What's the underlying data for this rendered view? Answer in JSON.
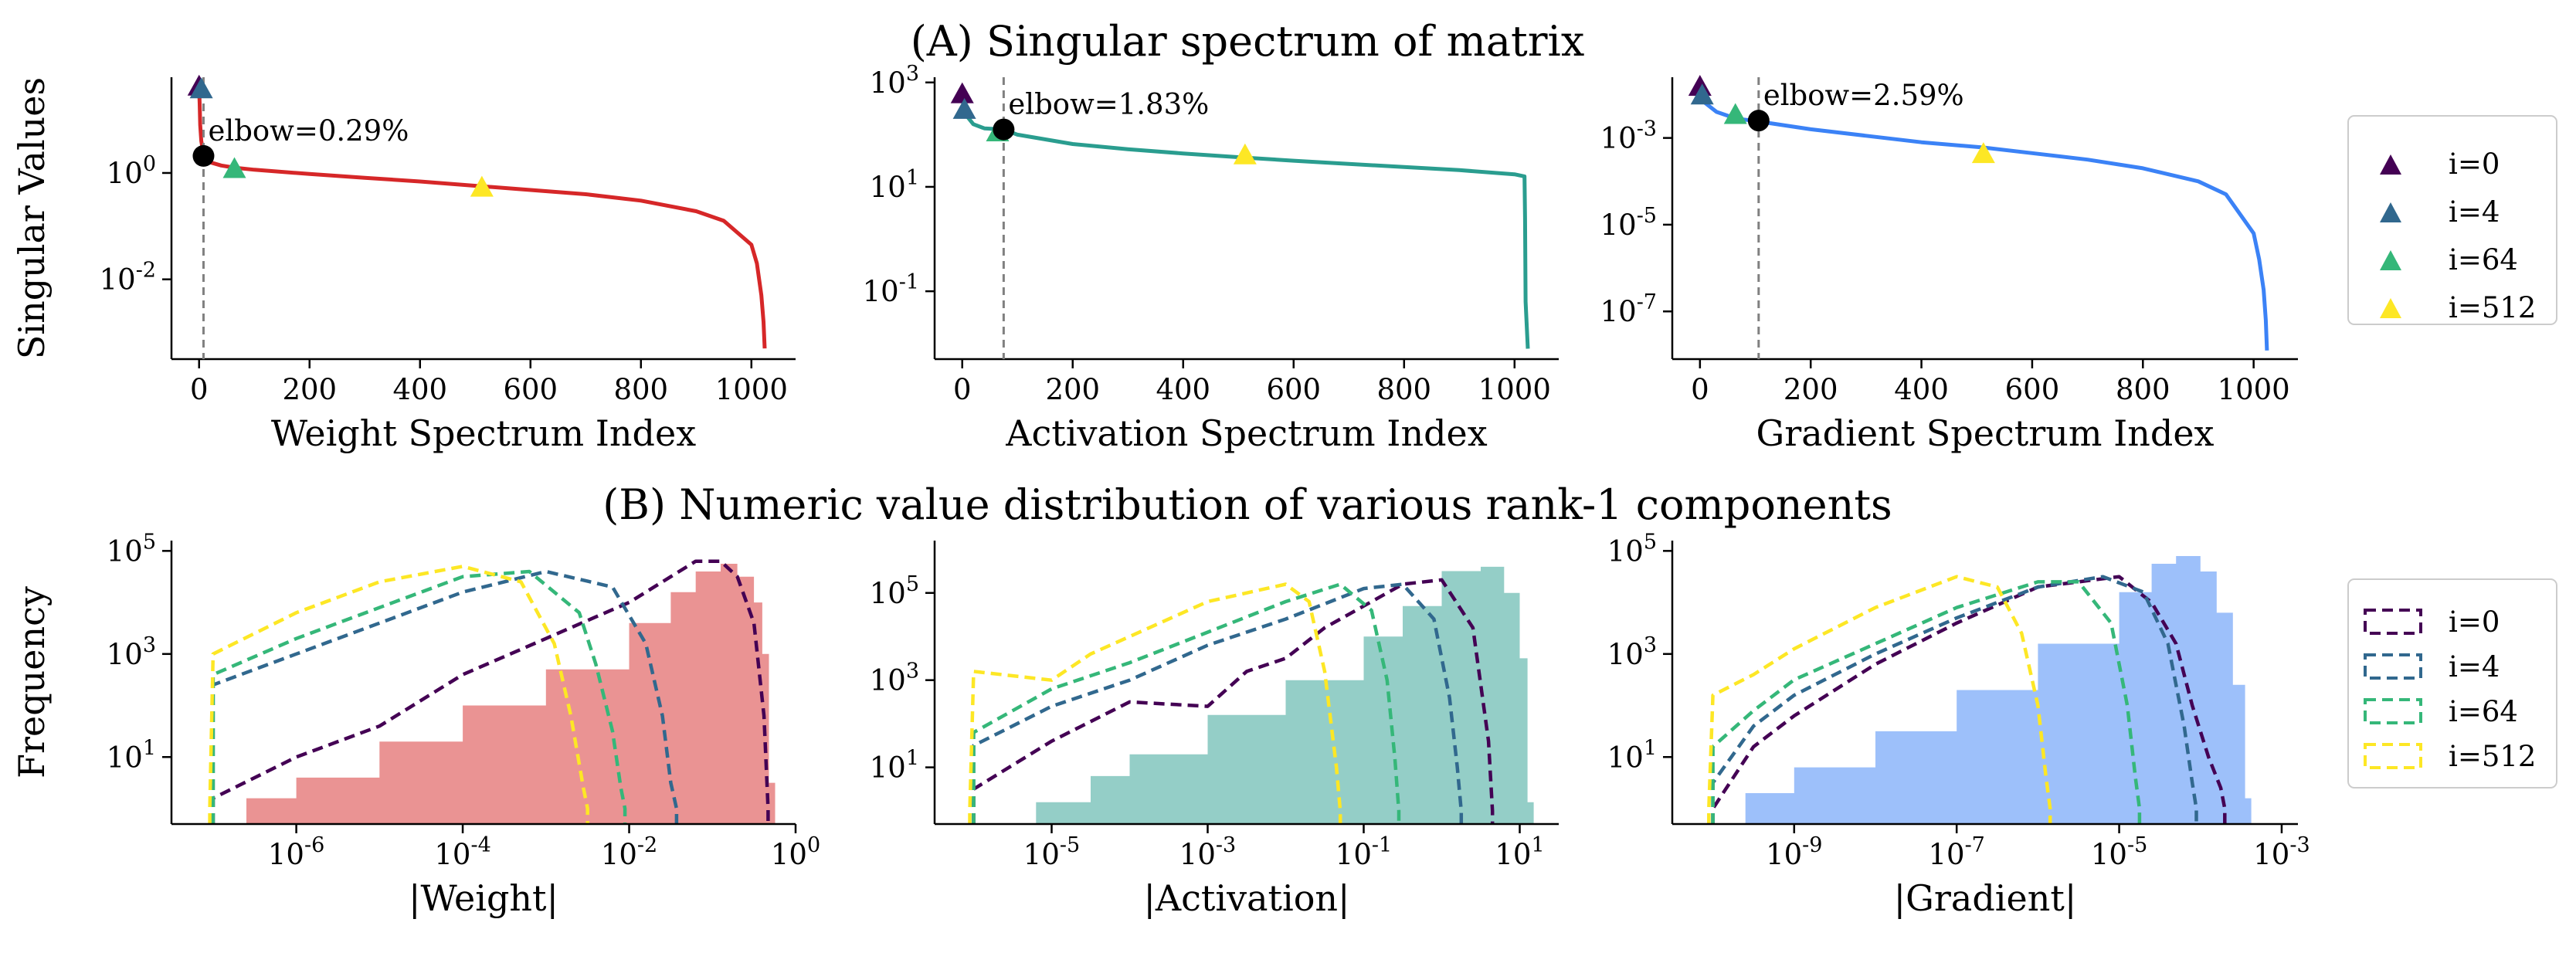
{
  "figure": {
    "title_a": "(A) Singular spectrum of matrix",
    "title_b": "(B) Numeric value distribution of various rank-1 components",
    "colors": {
      "weight": "#d62728",
      "activation": "#2a9d8f",
      "gradient": "#3b82f6",
      "i0": "#440154",
      "i4": "#31688e",
      "i64": "#35b779",
      "i512": "#fde725",
      "elbow_line": "#808080"
    }
  },
  "legend_spectrum": {
    "entries": [
      "i=0",
      "i=4",
      "i=64",
      "i=512"
    ]
  },
  "legend_hist": {
    "entries": [
      "i=0",
      "i=4",
      "i=64",
      "i=512"
    ]
  },
  "chart_data": [
    {
      "type": "line",
      "id": "weight_spectrum",
      "color_key": "weight",
      "xlabel": "Weight Spectrum Index",
      "ylabel": "Singular Values",
      "xlim": [
        -50,
        1080
      ],
      "ylim_log10": [
        -3.5,
        1.8
      ],
      "xticks": [
        0,
        200,
        400,
        600,
        800,
        1000
      ],
      "xtick_labels": [
        "0",
        "200",
        "400",
        "600",
        "800",
        "1000"
      ],
      "yticks_log10": [
        0,
        -2
      ],
      "ytick_labels": [
        "10^0",
        "10^-2"
      ],
      "x": [
        0,
        1,
        2,
        4,
        8,
        12,
        20,
        40,
        64,
        100,
        200,
        300,
        400,
        512,
        600,
        700,
        800,
        900,
        950,
        1000,
        1010,
        1018,
        1022,
        1024
      ],
      "y_log10": [
        1.6,
        1.3,
        0.9,
        0.6,
        0.35,
        0.26,
        0.2,
        0.14,
        0.1,
        0.06,
        -0.02,
        -0.09,
        -0.16,
        -0.25,
        -0.32,
        -0.4,
        -0.52,
        -0.72,
        -0.9,
        -1.35,
        -1.7,
        -2.3,
        -2.8,
        -3.3
      ],
      "markers": [
        {
          "label": "i=0",
          "x": 0,
          "y_log10": 1.6,
          "color_key": "i0"
        },
        {
          "label": "i=4",
          "x": 4,
          "y_log10": 1.55,
          "color_key": "i4"
        },
        {
          "label": "i=64",
          "x": 64,
          "y_log10": 0.05,
          "color_key": "i64"
        },
        {
          "label": "i=512",
          "x": 512,
          "y_log10": -0.3,
          "color_key": "i512"
        }
      ],
      "elbow": {
        "x": 8,
        "y_log10": 0.32,
        "label": "elbow=0.29%"
      }
    },
    {
      "type": "line",
      "id": "activation_spectrum",
      "color_key": "activation",
      "xlabel": "Activation Spectrum Index",
      "ylabel": "",
      "xlim": [
        -50,
        1080
      ],
      "ylim_log10": [
        -2.3,
        3.1
      ],
      "xticks": [
        0,
        200,
        400,
        600,
        800,
        1000
      ],
      "xtick_labels": [
        "0",
        "200",
        "400",
        "600",
        "800",
        "1000"
      ],
      "yticks_log10": [
        3,
        1,
        -1
      ],
      "ytick_labels": [
        "10^3",
        "10^1",
        "10^-1"
      ],
      "x": [
        0,
        5,
        20,
        40,
        75,
        100,
        200,
        300,
        400,
        512,
        600,
        700,
        800,
        900,
        1000,
        1018,
        1019,
        1020,
        1024
      ],
      "y_log10": [
        2.7,
        2.4,
        2.2,
        2.12,
        2.1,
        2.0,
        1.82,
        1.72,
        1.64,
        1.56,
        1.5,
        1.44,
        1.38,
        1.32,
        1.24,
        1.2,
        0.4,
        -1.2,
        -2.1
      ],
      "markers": [
        {
          "label": "i=0",
          "x": 0,
          "y_log10": 2.75,
          "color_key": "i0"
        },
        {
          "label": "i=4",
          "x": 4,
          "y_log10": 2.45,
          "color_key": "i4"
        },
        {
          "label": "i=64",
          "x": 64,
          "y_log10": 2.02,
          "color_key": "i64"
        },
        {
          "label": "i=512",
          "x": 512,
          "y_log10": 1.58,
          "color_key": "i512"
        }
      ],
      "elbow": {
        "x": 75,
        "y_log10": 2.1,
        "label": "elbow=1.83%"
      }
    },
    {
      "type": "line",
      "id": "gradient_spectrum",
      "color_key": "gradient",
      "xlabel": "Gradient Spectrum Index",
      "ylabel": "",
      "xlim": [
        -50,
        1080
      ],
      "ylim_log10": [
        -8.1,
        -1.6
      ],
      "xticks": [
        0,
        200,
        400,
        600,
        800,
        1000
      ],
      "xtick_labels": [
        "0",
        "200",
        "400",
        "600",
        "800",
        "1000"
      ],
      "yticks_log10": [
        -3,
        -5,
        -7
      ],
      "ytick_labels": [
        "10^-3",
        "10^-5",
        "10^-7"
      ],
      "x": [
        0,
        2,
        10,
        30,
        64,
        106,
        200,
        300,
        400,
        512,
        600,
        700,
        800,
        900,
        950,
        1000,
        1010,
        1018,
        1022,
        1024
      ],
      "y_log10": [
        -1.85,
        -2.0,
        -2.2,
        -2.4,
        -2.55,
        -2.62,
        -2.8,
        -2.95,
        -3.1,
        -3.22,
        -3.35,
        -3.5,
        -3.7,
        -4.0,
        -4.3,
        -5.2,
        -5.8,
        -6.5,
        -7.2,
        -7.9
      ],
      "markers": [
        {
          "label": "i=0",
          "x": 0,
          "y_log10": -1.85,
          "color_key": "i0"
        },
        {
          "label": "i=4",
          "x": 4,
          "y_log10": -2.05,
          "color_key": "i4"
        },
        {
          "label": "i=64",
          "x": 64,
          "y_log10": -2.5,
          "color_key": "i64"
        },
        {
          "label": "i=512",
          "x": 512,
          "y_log10": -3.4,
          "color_key": "i512"
        }
      ],
      "elbow": {
        "x": 106,
        "y_log10": -2.6,
        "label": "elbow=2.59%"
      }
    },
    {
      "type": "histogram",
      "id": "weight_hist",
      "color_key": "weight",
      "xlabel": "|Weight|",
      "ylabel": "Frequency",
      "xlim_log10": [
        -7.5,
        0
      ],
      "ylim_log10": [
        -0.3,
        5.2
      ],
      "xticks_log10": [
        -6,
        -4,
        -2,
        0
      ],
      "xtick_labels": [
        "10^-6",
        "10^-4",
        "10^-2",
        "10^0"
      ],
      "yticks_log10": [
        5,
        3,
        1
      ],
      "ytick_labels": [
        "10^5",
        "10^3",
        "10^1"
      ],
      "filled": {
        "x_log10": [
          -6.6,
          -6,
          -5,
          -4,
          -3,
          -2,
          -1.5,
          -1.2,
          -0.9,
          -0.7,
          -0.5,
          -0.4,
          -0.32
        ],
        "y_log10": [
          0.2,
          0.6,
          1.3,
          2.0,
          2.7,
          3.6,
          4.2,
          4.6,
          4.75,
          4.5,
          4.0,
          3.0,
          0.5
        ]
      },
      "outlines": [
        {
          "label": "i=0",
          "color_key": "i0",
          "x_log10": [
            -7,
            -6,
            -5,
            -4,
            -3,
            -2,
            -1.5,
            -1.2,
            -0.9,
            -0.7,
            -0.5,
            -0.38,
            -0.33
          ],
          "y_log10": [
            0.2,
            1.0,
            1.6,
            2.6,
            3.3,
            4.0,
            4.5,
            4.8,
            4.8,
            4.5,
            3.6,
            1.8,
            0.0
          ]
        },
        {
          "label": "i=4",
          "color_key": "i4",
          "x_log10": [
            -7,
            -6,
            -5,
            -4,
            -3,
            -2.2,
            -1.8,
            -1.6,
            -1.5,
            -1.43
          ],
          "y_log10": [
            2.4,
            3.0,
            3.6,
            4.2,
            4.6,
            4.3,
            3.2,
            1.8,
            0.5,
            0.0
          ]
        },
        {
          "label": "i=64",
          "color_key": "i64",
          "x_log10": [
            -7,
            -6,
            -5,
            -4,
            -3.2,
            -2.6,
            -2.4,
            -2.2,
            -2.1,
            -2.05
          ],
          "y_log10": [
            2.6,
            3.3,
            3.9,
            4.5,
            4.6,
            3.8,
            2.8,
            1.5,
            0.4,
            0.0
          ]
        },
        {
          "label": "i=512",
          "color_key": "i512",
          "x_log10": [
            -7.04,
            -7,
            -6,
            -5,
            -4,
            -3.3,
            -2.9,
            -2.7,
            -2.55,
            -2.5
          ],
          "y_log10": [
            0.0,
            3.0,
            3.8,
            4.4,
            4.7,
            4.4,
            3.2,
            1.8,
            0.4,
            0.0
          ]
        }
      ]
    },
    {
      "type": "histogram",
      "id": "activation_hist",
      "color_key": "activation",
      "xlabel": "|Activation|",
      "ylabel": "",
      "xlim_log10": [
        -6.5,
        1.5
      ],
      "ylim_log10": [
        -0.3,
        6.2
      ],
      "xticks_log10": [
        -5,
        -3,
        -1,
        1
      ],
      "xtick_labels": [
        "10^-5",
        "10^-3",
        "10^-1",
        "10^1"
      ],
      "yticks_log10": [
        5,
        3,
        1
      ],
      "ytick_labels": [
        "10^5",
        "10^3",
        "10^1"
      ],
      "filled": {
        "x_log10": [
          -5.2,
          -4.5,
          -4,
          -3,
          -2,
          -1,
          -0.5,
          0,
          0.5,
          0.8,
          1.0,
          1.1
        ],
        "y_log10": [
          0.2,
          0.8,
          1.3,
          2.2,
          3.0,
          4.0,
          4.7,
          5.5,
          5.6,
          5.0,
          3.5,
          0.2
        ]
      },
      "outlines": [
        {
          "label": "i=0",
          "color_key": "i0",
          "x_log10": [
            -6,
            -5,
            -4,
            -3,
            -2.5,
            -2,
            -1.5,
            -1,
            -0.5,
            0,
            0.4,
            0.6,
            0.65
          ],
          "y_log10": [
            0.5,
            1.6,
            2.5,
            2.4,
            3.2,
            3.5,
            4.2,
            4.7,
            5.2,
            5.3,
            4.2,
            1.6,
            0.0
          ]
        },
        {
          "label": "i=4",
          "color_key": "i4",
          "x_log10": [
            -6,
            -5,
            -4,
            -3,
            -2,
            -1,
            -0.5,
            -0.1,
            0.1,
            0.2,
            0.25
          ],
          "y_log10": [
            1.5,
            2.4,
            3.0,
            3.8,
            4.4,
            5.1,
            5.2,
            4.4,
            2.6,
            1.0,
            0.0
          ]
        },
        {
          "label": "i=64",
          "color_key": "i64",
          "x_log10": [
            -6,
            -5,
            -4,
            -3,
            -2,
            -1.3,
            -0.9,
            -0.7,
            -0.6,
            -0.55
          ],
          "y_log10": [
            1.8,
            2.8,
            3.4,
            4.1,
            4.8,
            5.2,
            4.6,
            3.0,
            1.2,
            0.0
          ]
        },
        {
          "label": "i=512",
          "color_key": "i512",
          "x_log10": [
            -6.05,
            -6,
            -5,
            -4.5,
            -4,
            -3,
            -2,
            -1.7,
            -1.5,
            -1.35,
            -1.3
          ],
          "y_log10": [
            0.0,
            3.2,
            3.0,
            3.6,
            4.0,
            4.8,
            5.2,
            4.8,
            3.2,
            1.0,
            0.0
          ]
        }
      ]
    },
    {
      "type": "histogram",
      "id": "gradient_hist",
      "color_key": "gradient",
      "xlabel": "|Gradient|",
      "ylabel": "",
      "xlim_log10": [
        -10.5,
        -2.8
      ],
      "ylim_log10": [
        -0.3,
        5.2
      ],
      "xticks_log10": [
        -9,
        -7,
        -5,
        -3
      ],
      "xtick_labels": [
        "10^-9",
        "10^-7",
        "10^-5",
        "10^-3"
      ],
      "yticks_log10": [
        5,
        3,
        1
      ],
      "ytick_labels": [
        "10^5",
        "10^3",
        "10^1"
      ],
      "filled": {
        "x_log10": [
          -9.6,
          -9,
          -8,
          -7,
          -6,
          -5,
          -4.6,
          -4.3,
          -4.0,
          -3.8,
          -3.6,
          -3.45
        ],
        "y_log10": [
          0.3,
          0.8,
          1.5,
          2.3,
          3.2,
          4.2,
          4.75,
          4.9,
          4.6,
          3.8,
          2.4,
          0.2
        ]
      },
      "outlines": [
        {
          "label": "i=0",
          "color_key": "i0",
          "x_log10": [
            -10,
            -9.5,
            -9,
            -8,
            -7,
            -6,
            -5,
            -4.6,
            -4.3,
            -4.1,
            -3.9,
            -3.75,
            -3.7
          ],
          "y_log10": [
            0.0,
            1.2,
            1.8,
            2.8,
            3.6,
            4.3,
            4.5,
            4.0,
            3.2,
            2.0,
            1.0,
            0.4,
            0.0
          ]
        },
        {
          "label": "i=4",
          "color_key": "i4",
          "x_log10": [
            -10,
            -9.5,
            -9,
            -8,
            -7,
            -6,
            -5.2,
            -4.7,
            -4.4,
            -4.2,
            -4.1,
            -4.05
          ],
          "y_log10": [
            0.5,
            1.6,
            2.2,
            3.0,
            3.7,
            4.3,
            4.5,
            4.2,
            3.2,
            1.6,
            0.5,
            0.0
          ]
        },
        {
          "label": "i=64",
          "color_key": "i64",
          "x_log10": [
            -10,
            -9.5,
            -9,
            -8,
            -7,
            -6,
            -5.5,
            -5.1,
            -4.9,
            -4.8,
            -4.75
          ],
          "y_log10": [
            1.2,
            1.9,
            2.5,
            3.2,
            3.9,
            4.4,
            4.4,
            3.6,
            2.0,
            0.6,
            0.0
          ]
        },
        {
          "label": "i=512",
          "color_key": "i512",
          "x_log10": [
            -10.05,
            -10,
            -9.5,
            -9,
            -8,
            -7,
            -6.5,
            -6.2,
            -6.0,
            -5.9,
            -5.85
          ],
          "y_log10": [
            0.0,
            2.2,
            2.6,
            3.1,
            3.9,
            4.5,
            4.3,
            3.4,
            2.0,
            0.6,
            0.0
          ]
        }
      ]
    }
  ]
}
